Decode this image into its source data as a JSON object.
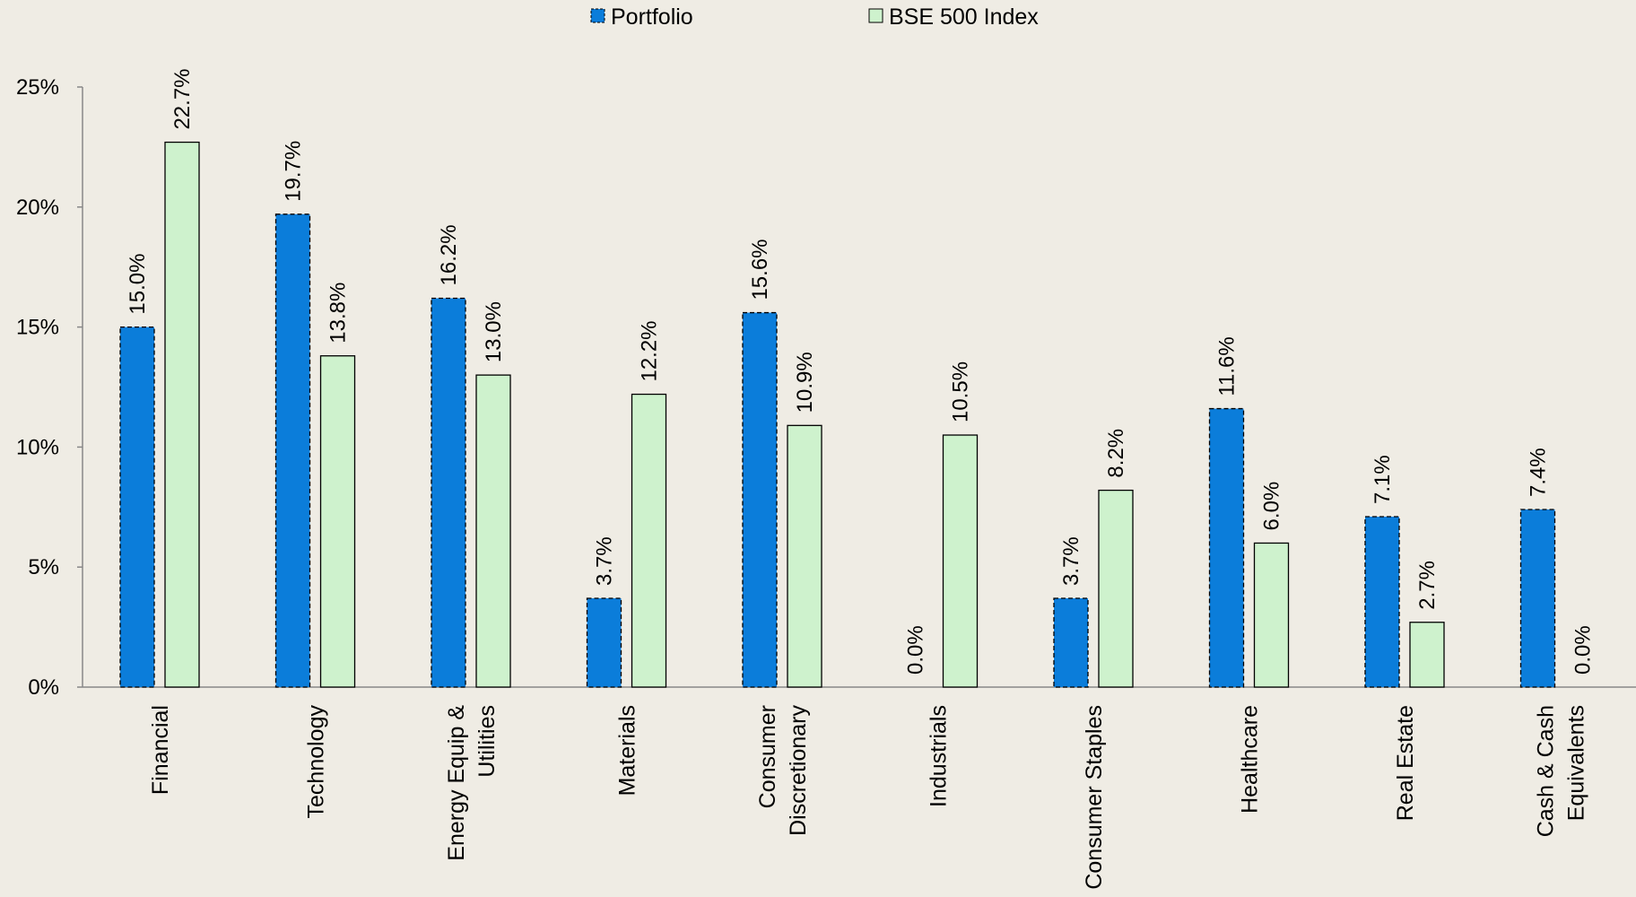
{
  "chart_data": {
    "type": "bar",
    "title": "",
    "xlabel": "",
    "ylabel": "",
    "ylim": [
      0,
      25
    ],
    "yticks": [
      0,
      5,
      10,
      15,
      20,
      25
    ],
    "ytick_labels": [
      "0%",
      "5%",
      "10%",
      "15%",
      "20%",
      "25%"
    ],
    "grid": false,
    "legend_position": "top-center",
    "categories": [
      [
        "Financial"
      ],
      [
        "Technology"
      ],
      [
        "Energy Equip &",
        "Utilities"
      ],
      [
        "Materials"
      ],
      [
        "Consumer",
        "Discretionary"
      ],
      [
        "Industrials"
      ],
      [
        "Consumer Staples"
      ],
      [
        "Healthcare"
      ],
      [
        "Real Estate"
      ],
      [
        "Cash & Cash",
        "Equivalents"
      ]
    ],
    "series": [
      {
        "name": "Portfolio",
        "color": "#0b7dda",
        "values": [
          15.0,
          19.7,
          16.2,
          3.7,
          15.6,
          0.0,
          3.7,
          11.6,
          7.1,
          7.4
        ],
        "labels": [
          "15.0%",
          "19.7%",
          "16.2%",
          "3.7%",
          "15.6%",
          "0.0%",
          "3.7%",
          "11.6%",
          "7.1%",
          "7.4%"
        ]
      },
      {
        "name": "BSE 500 Index",
        "color": "#cef2cd",
        "values": [
          22.7,
          13.8,
          13.0,
          12.2,
          10.9,
          10.5,
          8.2,
          6.0,
          2.7,
          0.0
        ],
        "labels": [
          "22.7%",
          "13.8%",
          "13.0%",
          "12.2%",
          "10.9%",
          "10.5%",
          "8.2%",
          "6.0%",
          "2.7%",
          "0.0%"
        ]
      }
    ]
  }
}
